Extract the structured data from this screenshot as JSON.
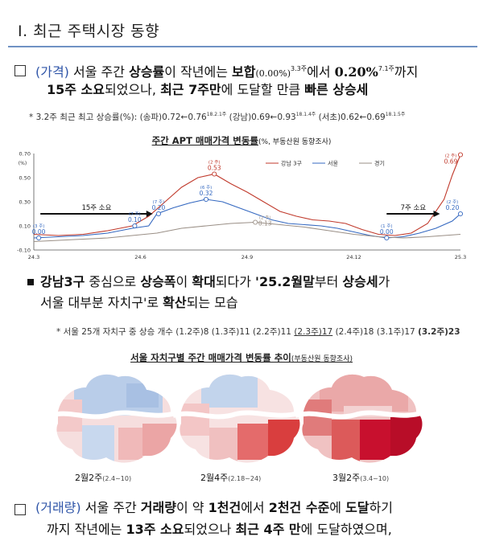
{
  "section_title": "Ⅰ. 최근 주택시장 동향",
  "para1": {
    "tag": "(가격)",
    "t1": "서울 주간 ",
    "t2": "상승률",
    "t3": "이 작년에는 ",
    "t4": "보합",
    "t5": "(0.00%)",
    "t6": "3.3주",
    "t7": "에서 ",
    "t8": "0.20%",
    "t9": "7.1주",
    "t10": "까지",
    "l2a": "15주 소요",
    "l2b": "되었으나, ",
    "l2c": "최근 7주만",
    "l2d": "에 도달할 만큼 ",
    "l2e": "빠른 상승세"
  },
  "note1": {
    "a": "* 3.2주 최근 최고 상승률(%): (송파)0.72←0.76",
    "a_sup": "18.2.1주",
    "b": " (강남)0.69←0.93",
    "b_sup": "18.1.4주",
    "c": " (서초)0.62←0.69",
    "c_sup": "18.1.5주"
  },
  "chart1": {
    "title": "주간 APT 매매가격 변동률",
    "title_sub": "(%, 부동산원 동향조사)",
    "pct_label": "(%)",
    "arrow1_label": "15주 소요",
    "arrow2_label": "7주 소요",
    "annotations": [
      {
        "pre": "(3 주)",
        "val": "0.00"
      },
      {
        "pre": "(7 주)",
        "val": "0.10"
      },
      {
        "pre": "(7 주)",
        "val": "0.20"
      },
      {
        "pre": "(6 주)",
        "val": "0.32"
      },
      {
        "pre": "(2 주)",
        "val": "0.53"
      },
      {
        "pre": "(2 주)",
        "val": "0.13"
      },
      {
        "pre": "(1 주)",
        "val": "0.00"
      },
      {
        "pre": "(2 주)",
        "val": "0.20"
      },
      {
        "pre": "(2 주)",
        "val": "0.69"
      }
    ]
  },
  "chart_data": {
    "type": "line",
    "title": "주간 APT 매매가격 변동률",
    "x_ticks": [
      "24.3",
      "24.6",
      "24.9",
      "24.12",
      "25.3"
    ],
    "y_ticks": [
      "0.70",
      "0.50",
      "0.30",
      "0.10",
      "-0.10"
    ],
    "ylim": [
      -0.1,
      0.7
    ],
    "legend_position": "top-right",
    "series": [
      {
        "name": "강남 3구",
        "color": "#c0392b",
        "points": [
          [
            0,
            0.03
          ],
          [
            3,
            0.02
          ],
          [
            6,
            0.03
          ],
          [
            9,
            0.06
          ],
          [
            12,
            0.1
          ],
          [
            14,
            0.18
          ],
          [
            16,
            0.3
          ],
          [
            18,
            0.42
          ],
          [
            20,
            0.5
          ],
          [
            22,
            0.53
          ],
          [
            24,
            0.45
          ],
          [
            26,
            0.38
          ],
          [
            28,
            0.3
          ],
          [
            30,
            0.22
          ],
          [
            32,
            0.18
          ],
          [
            34,
            0.15
          ],
          [
            36,
            0.14
          ],
          [
            38,
            0.12
          ],
          [
            40,
            0.07
          ],
          [
            42,
            0.03
          ],
          [
            44,
            0.02
          ],
          [
            46,
            0.04
          ],
          [
            48,
            0.12
          ],
          [
            50,
            0.32
          ],
          [
            51,
            0.52
          ],
          [
            52,
            0.69
          ]
        ]
      },
      {
        "name": "서울",
        "color": "#3468c0",
        "points": [
          [
            0,
            0.0
          ],
          [
            3,
            0.01
          ],
          [
            6,
            0.02
          ],
          [
            9,
            0.04
          ],
          [
            12,
            0.08
          ],
          [
            14,
            0.1
          ],
          [
            15,
            0.2
          ],
          [
            17,
            0.25
          ],
          [
            19,
            0.29
          ],
          [
            21,
            0.32
          ],
          [
            23,
            0.3
          ],
          [
            25,
            0.25
          ],
          [
            27,
            0.2
          ],
          [
            29,
            0.15
          ],
          [
            31,
            0.12
          ],
          [
            33,
            0.11
          ],
          [
            35,
            0.1
          ],
          [
            37,
            0.08
          ],
          [
            39,
            0.05
          ],
          [
            41,
            0.02
          ],
          [
            43,
            0.0
          ],
          [
            45,
            0.01
          ],
          [
            47,
            0.04
          ],
          [
            49,
            0.08
          ],
          [
            51,
            0.14
          ],
          [
            52,
            0.2
          ]
        ]
      },
      {
        "name": "경기",
        "color": "#9a8f86",
        "points": [
          [
            0,
            -0.03
          ],
          [
            3,
            -0.02
          ],
          [
            6,
            -0.01
          ],
          [
            9,
            0.0
          ],
          [
            12,
            0.02
          ],
          [
            15,
            0.04
          ],
          [
            18,
            0.08
          ],
          [
            21,
            0.1
          ],
          [
            24,
            0.12
          ],
          [
            27,
            0.13
          ],
          [
            30,
            0.11
          ],
          [
            33,
            0.09
          ],
          [
            36,
            0.06
          ],
          [
            39,
            0.03
          ],
          [
            42,
            0.01
          ],
          [
            45,
            0.0
          ],
          [
            48,
            0.01
          ],
          [
            50,
            0.02
          ],
          [
            52,
            0.03
          ]
        ]
      }
    ]
  },
  "para2": {
    "a": "강남3구",
    "b": " 중심으로 ",
    "c": "상승폭",
    "d": "이 ",
    "e": "확대",
    "f": "되다가 ",
    "g": "'25.2월말",
    "h": "부터 ",
    "i": "상승세",
    "j": "가",
    "l2a": "서울 대부분 자치구",
    "l2b": "'로 ",
    "l2c": "확산",
    "l2d": "되는 모습"
  },
  "note2": {
    "a": "* 서울 25개 자치구 중 상승 개수 (1.2주)8 (1.3주)11 (2.2주)11 ",
    "b": "(2.3주)17",
    "c": " (2.4주)18 (3.1주)17 ",
    "d": "(3.2주)23"
  },
  "maps": {
    "title": "서울 자치구별 주간 매매가격 변동률 추이",
    "title_sub": "(부동산원 동향조사)",
    "captions": [
      {
        "main": "2월2주",
        "sub": "(2.4~10)"
      },
      {
        "main": "2월4주",
        "sub": "(2.18~24)"
      },
      {
        "main": "3월2주",
        "sub": "(3.4~10)"
      }
    ]
  },
  "para3": {
    "tag": "(거래량)",
    "a": " 서울 주간 ",
    "b": "거래량",
    "c": "이 약 ",
    "d": "1천건",
    "e": "에서 ",
    "f": "2천건 수준",
    "g": "에 ",
    "h": "도달",
    "i": "하기",
    "l2a": "까지 작년에는 ",
    "l2b": "13주 소요",
    "l2c": "되었으나 ",
    "l2d": "최근 4주 만",
    "l2e": "에 도달하였으며,"
  }
}
